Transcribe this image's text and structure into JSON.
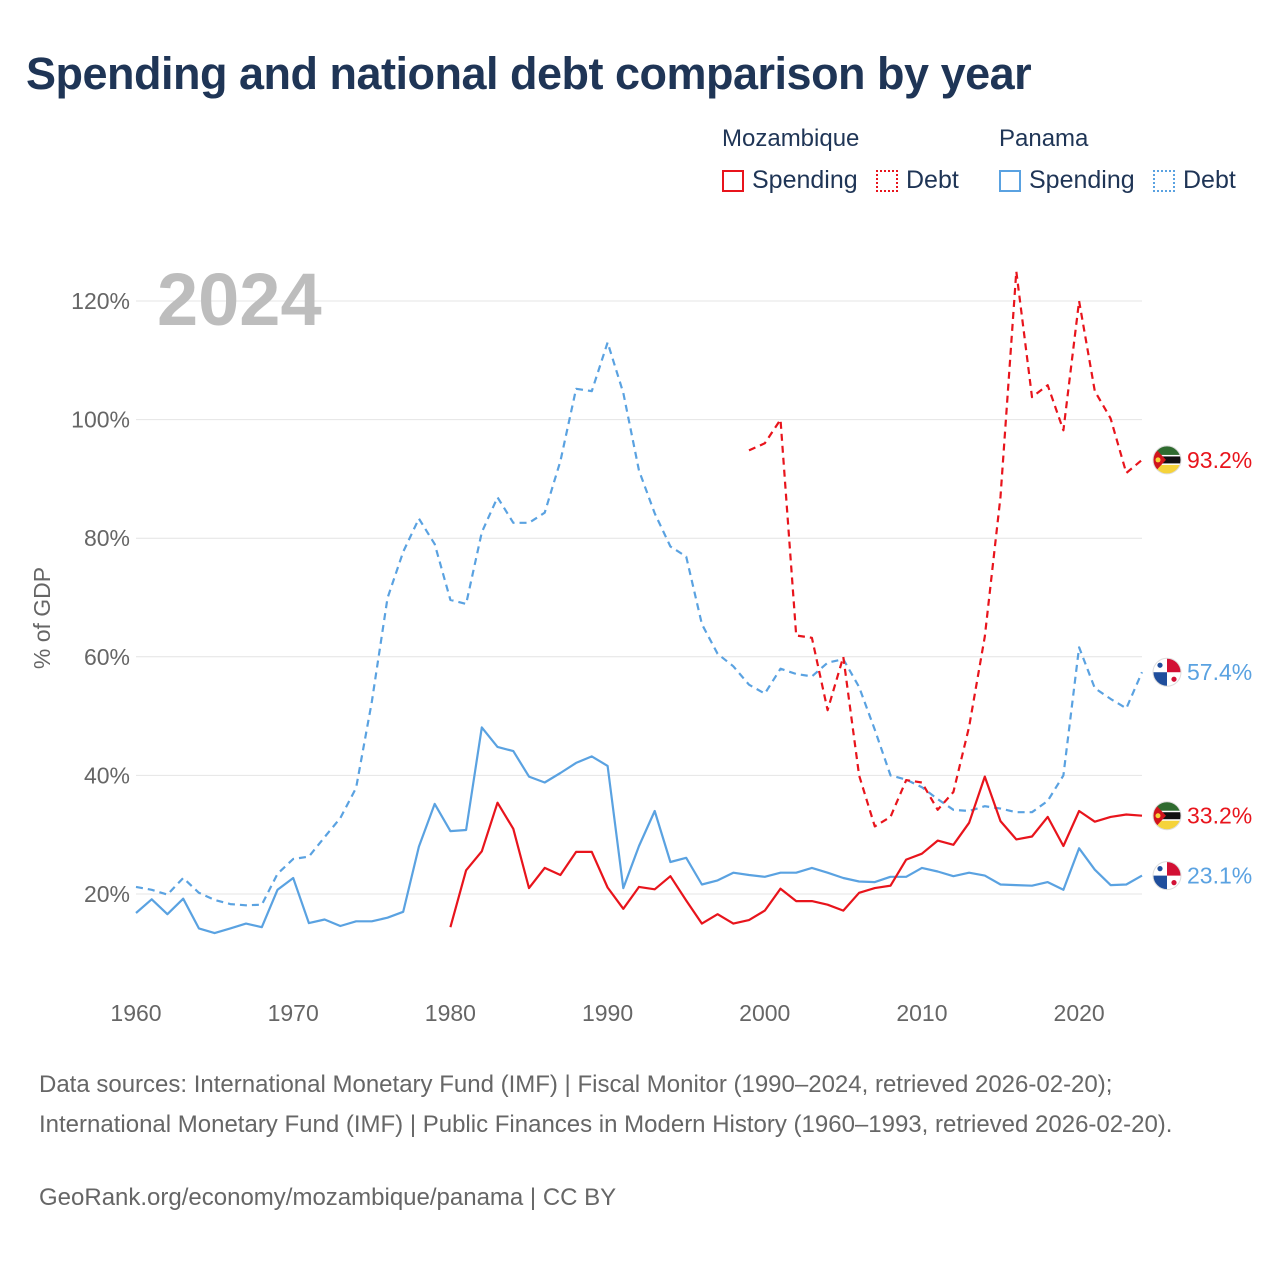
{
  "title": "Spending and national debt comparison by year",
  "legend": {
    "countries": [
      {
        "name": "Mozambique",
        "color": "#e8141c",
        "spending_label": "Spending",
        "debt_label": "Debt"
      },
      {
        "name": "Panama",
        "color": "#5aa2e1",
        "spending_label": "Spending",
        "debt_label": "Debt"
      }
    ]
  },
  "year_watermark": "2024",
  "source": "Data sources: International Monetary Fund (IMF) | Fiscal Monitor (1990–2024, retrieved 2026-02-20); International Monetary Fund (IMF) | Public Finances in Modern History (1960–1993, retrieved 2026-02-20).",
  "source_link": "GeoRank.org/economy/mozambique/panama | CC BY",
  "chart_data": {
    "type": "line",
    "ylabel": "% of GDP",
    "xlabel": "",
    "xlim": [
      1960,
      2024
    ],
    "ylim": [
      5,
      127
    ],
    "x_ticks": [
      1960,
      1970,
      1980,
      1990,
      2000,
      2010,
      2020
    ],
    "x_tick_labels": [
      "1960",
      "1970",
      "1980",
      "1990",
      "2000",
      "2010",
      "2020"
    ],
    "y_ticks": [
      20,
      40,
      60,
      80,
      100,
      120
    ],
    "y_tick_labels": [
      "20%",
      "40%",
      "60%",
      "80%",
      "100%",
      "120%"
    ],
    "end_labels": [
      {
        "series": "Mozambique Debt",
        "label": "93.2%",
        "value": 93.2,
        "color": "#e8141c",
        "flag": "mozambique"
      },
      {
        "series": "Panama Debt",
        "label": "57.4%",
        "value": 57.4,
        "color": "#5aa2e1",
        "flag": "panama"
      },
      {
        "series": "Mozambique Spending",
        "label": "33.2%",
        "value": 33.2,
        "color": "#e8141c",
        "flag": "mozambique"
      },
      {
        "series": "Panama Spending",
        "label": "23.1%",
        "value": 23.1,
        "color": "#5aa2e1",
        "flag": "panama"
      }
    ],
    "series": [
      {
        "name": "Panama Spending",
        "country": "Panama",
        "kind": "spending",
        "color": "#5aa2e1",
        "dashed": false,
        "x": [
          1960,
          1961,
          1962,
          1963,
          1964,
          1965,
          1966,
          1967,
          1968,
          1969,
          1970,
          1971,
          1972,
          1973,
          1974,
          1975,
          1976,
          1977,
          1978,
          1979,
          1980,
          1981,
          1982,
          1983,
          1984,
          1985,
          1986,
          1987,
          1988,
          1989,
          1990,
          1991,
          1992,
          1993,
          1994,
          1995,
          1996,
          1997,
          1998,
          1999,
          2000,
          2001,
          2002,
          2003,
          2004,
          2005,
          2006,
          2007,
          2008,
          2009,
          2010,
          2011,
          2012,
          2013,
          2014,
          2015,
          2016,
          2017,
          2018,
          2019,
          2020,
          2021,
          2022,
          2023,
          2024
        ],
        "values": [
          16.8,
          19.1,
          16.6,
          19.2,
          14.2,
          13.4,
          14.2,
          15.0,
          14.4,
          20.7,
          22.7,
          15.1,
          15.7,
          14.6,
          15.4,
          15.4,
          16.0,
          17.0,
          28.0,
          35.2,
          30.6,
          30.8,
          48.1,
          44.8,
          44.1,
          39.8,
          38.8,
          40.4,
          42.1,
          43.2,
          41.6,
          21.0,
          28.1,
          34.0,
          25.4,
          26.1,
          21.6,
          22.3,
          23.6,
          23.2,
          22.9,
          23.6,
          23.6,
          24.4,
          23.6,
          22.7,
          22.1,
          22.0,
          22.9,
          22.9,
          24.4,
          23.8,
          23.0,
          23.6,
          23.1,
          21.6,
          21.5,
          21.4,
          22.0,
          20.7,
          27.7,
          24.1,
          21.5,
          21.6,
          23.1
        ]
      },
      {
        "name": "Panama Debt",
        "country": "Panama",
        "kind": "debt",
        "color": "#5aa2e1",
        "dashed": true,
        "x": [
          1960,
          1961,
          1962,
          1963,
          1964,
          1965,
          1966,
          1967,
          1968,
          1969,
          1970,
          1971,
          1972,
          1973,
          1974,
          1975,
          1976,
          1977,
          1978,
          1979,
          1980,
          1981,
          1982,
          1983,
          1984,
          1985,
          1986,
          1987,
          1988,
          1989,
          1990,
          1991,
          1992,
          1993,
          1994,
          1995,
          1996,
          1997,
          1998,
          1999,
          2000,
          2001,
          2002,
          2003,
          2004,
          2005,
          2006,
          2007,
          2008,
          2009,
          2010,
          2011,
          2012,
          2013,
          2014,
          2015,
          2016,
          2017,
          2018,
          2019,
          2020,
          2021,
          2022,
          2023,
          2024
        ],
        "values": [
          21.2,
          20.7,
          19.9,
          22.7,
          20.2,
          19.0,
          18.3,
          18.1,
          18.2,
          23.4,
          25.9,
          26.3,
          29.6,
          32.8,
          37.9,
          52.4,
          69.9,
          77.7,
          83.3,
          79.0,
          69.6,
          68.9,
          81.0,
          86.9,
          82.6,
          82.6,
          84.3,
          93.0,
          105.2,
          104.8,
          113.0,
          104.5,
          91.4,
          84.2,
          78.6,
          76.9,
          65.5,
          60.5,
          58.4,
          55.3,
          53.8,
          58.0,
          57.1,
          56.7,
          59.0,
          59.6,
          54.9,
          47.7,
          40.0,
          39.3,
          38.0,
          36.0,
          34.2,
          34.0,
          34.8,
          34.4,
          33.8,
          33.8,
          35.7,
          40.0,
          61.6,
          54.7,
          52.9,
          51.3,
          57.4
        ]
      },
      {
        "name": "Mozambique Spending",
        "country": "Mozambique",
        "kind": "spending",
        "color": "#e8141c",
        "dashed": false,
        "x": [
          1980,
          1981,
          1982,
          1983,
          1984,
          1985,
          1986,
          1987,
          1988,
          1989,
          1990,
          1991,
          1992,
          1993,
          1994,
          1995,
          1996,
          1997,
          1998,
          1999,
          2000,
          2001,
          2002,
          2003,
          2004,
          2005,
          2006,
          2007,
          2008,
          2009,
          2010,
          2011,
          2012,
          2013,
          2014,
          2015,
          2016,
          2017,
          2018,
          2019,
          2020,
          2021,
          2022,
          2023,
          2024
        ],
        "values": [
          14.4,
          24.0,
          27.2,
          35.4,
          31.0,
          21.0,
          24.4,
          23.2,
          27.1,
          27.1,
          21.1,
          17.5,
          21.2,
          20.8,
          23.0,
          18.9,
          15.0,
          16.6,
          15.0,
          15.6,
          17.2,
          20.9,
          18.8,
          18.8,
          18.2,
          17.2,
          20.2,
          21.0,
          21.4,
          25.8,
          26.8,
          29.0,
          28.3,
          32.0,
          39.8,
          32.3,
          29.2,
          29.7,
          33.0,
          28.1,
          34.0,
          32.2,
          33.0,
          33.4,
          33.2
        ]
      },
      {
        "name": "Mozambique Debt",
        "country": "Mozambique",
        "kind": "debt",
        "color": "#e8141c",
        "dashed": true,
        "x": [
          1999,
          2000,
          2001,
          2002,
          2003,
          2004,
          2005,
          2006,
          2007,
          2008,
          2009,
          2010,
          2011,
          2012,
          2013,
          2014,
          2015,
          2016,
          2017,
          2018,
          2019,
          2020,
          2021,
          2022,
          2023,
          2024
        ],
        "values": [
          94.8,
          96.0,
          100.0,
          63.6,
          63.2,
          51.0,
          60.0,
          40.0,
          31.4,
          33.0,
          39.2,
          38.8,
          34.2,
          37.2,
          48.2,
          63.4,
          87.0,
          125.0,
          103.8,
          105.8,
          98.2,
          120.0,
          104.8,
          100.2,
          91.0,
          93.2
        ]
      }
    ]
  }
}
